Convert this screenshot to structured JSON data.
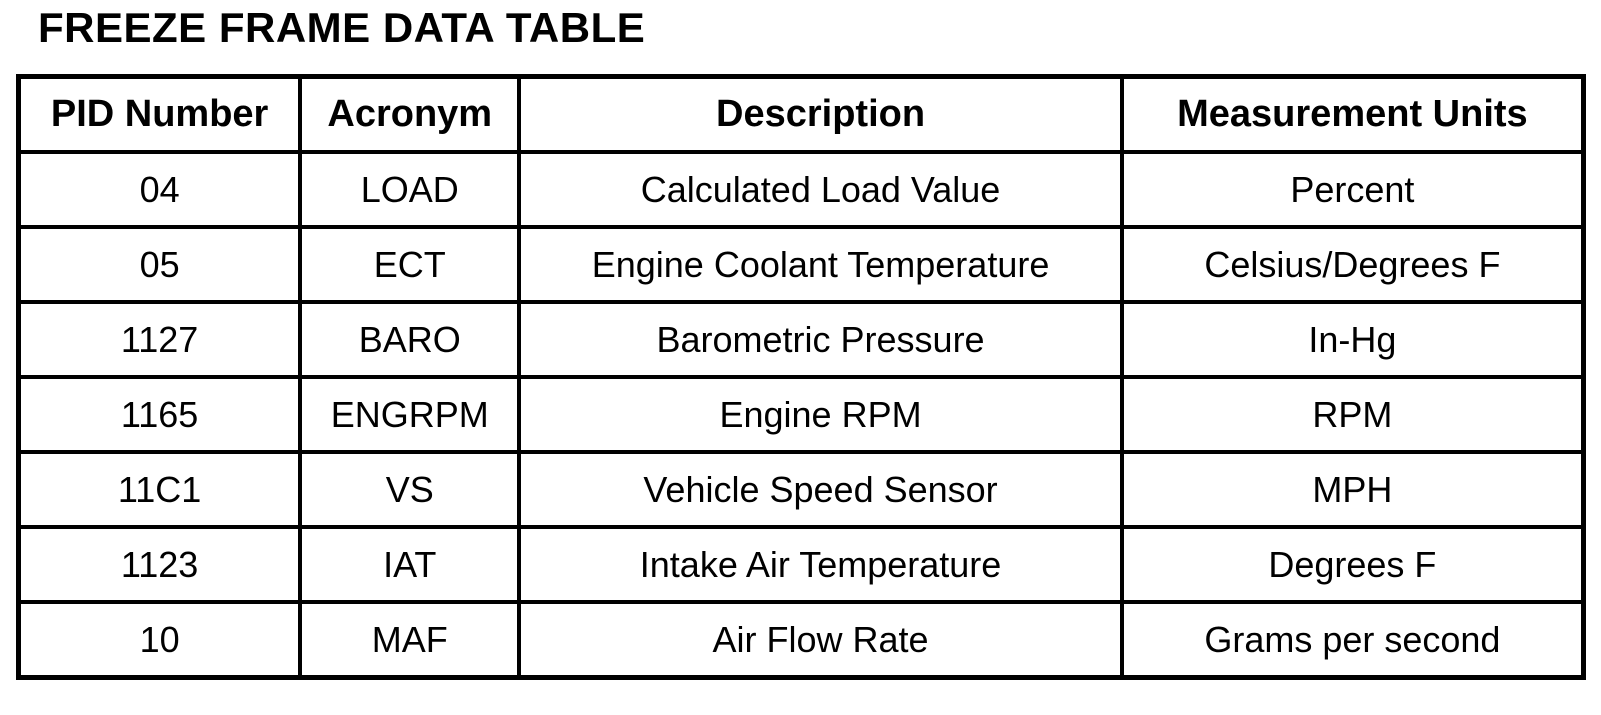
{
  "title": "FREEZE FRAME DATA TABLE",
  "table": {
    "headers": [
      "PID Number",
      "Acronym",
      "Description",
      "Measurement Units"
    ],
    "rows": [
      [
        "04",
        "LOAD",
        "Calculated Load Value",
        "Percent"
      ],
      [
        "05",
        "ECT",
        "Engine Coolant Temperature",
        "Celsius/Degrees F"
      ],
      [
        "1127",
        "BARO",
        "Barometric Pressure",
        "In-Hg"
      ],
      [
        "1165",
        "ENGRPM",
        "Engine RPM",
        "RPM"
      ],
      [
        "11C1",
        "VS",
        "Vehicle Speed Sensor",
        "MPH"
      ],
      [
        "1123",
        "IAT",
        "Intake Air Temperature",
        "Degrees F"
      ],
      [
        "10",
        "MAF",
        "Air Flow Rate",
        "Grams per second"
      ]
    ]
  }
}
